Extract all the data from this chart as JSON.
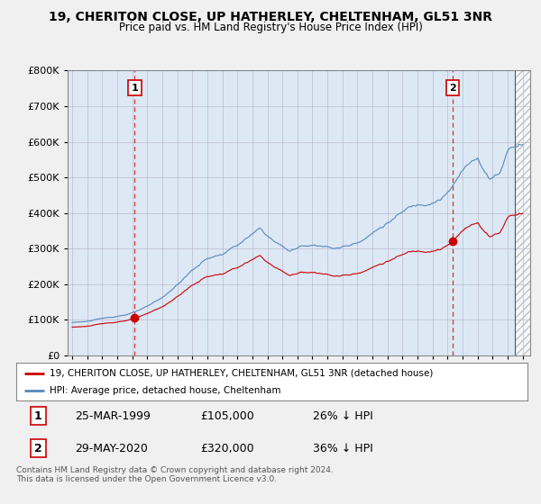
{
  "title": "19, CHERITON CLOSE, UP HATHERLEY, CHELTENHAM, GL51 3NR",
  "subtitle": "Price paid vs. HM Land Registry's House Price Index (HPI)",
  "legend_line1": "19, CHERITON CLOSE, UP HATHERLEY, CHELTENHAM, GL51 3NR (detached house)",
  "legend_line2": "HPI: Average price, detached house, Cheltenham",
  "footer": "Contains HM Land Registry data © Crown copyright and database right 2024.\nThis data is licensed under the Open Government Licence v3.0.",
  "transaction1_date": "25-MAR-1999",
  "transaction1_price": "£105,000",
  "transaction1_hpi": "26% ↓ HPI",
  "transaction2_date": "29-MAY-2020",
  "transaction2_price": "£320,000",
  "transaction2_hpi": "36% ↓ HPI",
  "red_color": "#cc0000",
  "blue_color": "#5588bb",
  "background_color": "#f0f0f0",
  "plot_bg_color": "#dde8f5",
  "ylim": [
    0,
    800000
  ],
  "yticks": [
    0,
    100000,
    200000,
    300000,
    400000,
    500000,
    600000,
    700000,
    800000
  ],
  "xlim_start": 1994.7,
  "xlim_end": 2025.5,
  "hatch_start": 2024.5
}
